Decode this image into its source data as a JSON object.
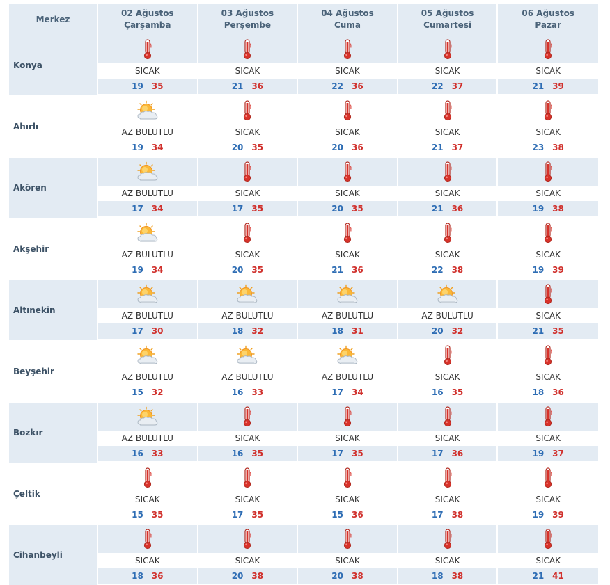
{
  "header": {
    "location_label": "Merkez",
    "days": [
      {
        "date": "02 Ağustos",
        "weekday": "Çarşamba"
      },
      {
        "date": "03 Ağustos",
        "weekday": "Perşembe"
      },
      {
        "date": "04 Ağustos",
        "weekday": "Cuma"
      },
      {
        "date": "05 Ağustos",
        "weekday": "Cumartesi"
      },
      {
        "date": "06 Ağustos",
        "weekday": "Pazar"
      }
    ]
  },
  "icons": {
    "hot": "thermometer-icon",
    "partly_cloudy": "partly-cloudy-icon"
  },
  "colors": {
    "min_temp": "#2e6db4",
    "max_temp": "#d0312d",
    "row_shade": "#e3ebf3"
  },
  "rows": [
    {
      "city": "Konya",
      "days": [
        {
          "icon": "hot",
          "condition": "SICAK",
          "min": "19",
          "max": "35"
        },
        {
          "icon": "hot",
          "condition": "SICAK",
          "min": "21",
          "max": "36"
        },
        {
          "icon": "hot",
          "condition": "SICAK",
          "min": "22",
          "max": "36"
        },
        {
          "icon": "hot",
          "condition": "SICAK",
          "min": "22",
          "max": "37"
        },
        {
          "icon": "hot",
          "condition": "SICAK",
          "min": "21",
          "max": "39"
        }
      ]
    },
    {
      "city": "Ahırlı",
      "days": [
        {
          "icon": "partly_cloudy",
          "condition": "AZ BULUTLU",
          "min": "19",
          "max": "34"
        },
        {
          "icon": "hot",
          "condition": "SICAK",
          "min": "20",
          "max": "35"
        },
        {
          "icon": "hot",
          "condition": "SICAK",
          "min": "20",
          "max": "36"
        },
        {
          "icon": "hot",
          "condition": "SICAK",
          "min": "21",
          "max": "37"
        },
        {
          "icon": "hot",
          "condition": "SICAK",
          "min": "23",
          "max": "38"
        }
      ]
    },
    {
      "city": "Akören",
      "days": [
        {
          "icon": "partly_cloudy",
          "condition": "AZ BULUTLU",
          "min": "17",
          "max": "34"
        },
        {
          "icon": "hot",
          "condition": "SICAK",
          "min": "17",
          "max": "35"
        },
        {
          "icon": "hot",
          "condition": "SICAK",
          "min": "20",
          "max": "35"
        },
        {
          "icon": "hot",
          "condition": "SICAK",
          "min": "21",
          "max": "36"
        },
        {
          "icon": "hot",
          "condition": "SICAK",
          "min": "19",
          "max": "38"
        }
      ]
    },
    {
      "city": "Akşehir",
      "days": [
        {
          "icon": "partly_cloudy",
          "condition": "AZ BULUTLU",
          "min": "19",
          "max": "34"
        },
        {
          "icon": "hot",
          "condition": "SICAK",
          "min": "20",
          "max": "35"
        },
        {
          "icon": "hot",
          "condition": "SICAK",
          "min": "21",
          "max": "36"
        },
        {
          "icon": "hot",
          "condition": "SICAK",
          "min": "22",
          "max": "38"
        },
        {
          "icon": "hot",
          "condition": "SICAK",
          "min": "19",
          "max": "39"
        }
      ]
    },
    {
      "city": "Altınekin",
      "days": [
        {
          "icon": "partly_cloudy",
          "condition": "AZ BULUTLU",
          "min": "17",
          "max": "30"
        },
        {
          "icon": "partly_cloudy",
          "condition": "AZ BULUTLU",
          "min": "18",
          "max": "32"
        },
        {
          "icon": "partly_cloudy",
          "condition": "AZ BULUTLU",
          "min": "18",
          "max": "31"
        },
        {
          "icon": "partly_cloudy",
          "condition": "AZ BULUTLU",
          "min": "20",
          "max": "32"
        },
        {
          "icon": "hot",
          "condition": "SICAK",
          "min": "21",
          "max": "35"
        }
      ]
    },
    {
      "city": "Beyşehir",
      "days": [
        {
          "icon": "partly_cloudy",
          "condition": "AZ BULUTLU",
          "min": "15",
          "max": "32"
        },
        {
          "icon": "partly_cloudy",
          "condition": "AZ BULUTLU",
          "min": "16",
          "max": "33"
        },
        {
          "icon": "partly_cloudy",
          "condition": "AZ BULUTLU",
          "min": "17",
          "max": "34"
        },
        {
          "icon": "hot",
          "condition": "SICAK",
          "min": "16",
          "max": "35"
        },
        {
          "icon": "hot",
          "condition": "SICAK",
          "min": "18",
          "max": "36"
        }
      ]
    },
    {
      "city": "Bozkır",
      "days": [
        {
          "icon": "partly_cloudy",
          "condition": "AZ BULUTLU",
          "min": "16",
          "max": "33"
        },
        {
          "icon": "hot",
          "condition": "SICAK",
          "min": "16",
          "max": "35"
        },
        {
          "icon": "hot",
          "condition": "SICAK",
          "min": "17",
          "max": "35"
        },
        {
          "icon": "hot",
          "condition": "SICAK",
          "min": "17",
          "max": "36"
        },
        {
          "icon": "hot",
          "condition": "SICAK",
          "min": "19",
          "max": "37"
        }
      ]
    },
    {
      "city": "Çeltik",
      "days": [
        {
          "icon": "hot",
          "condition": "SICAK",
          "min": "15",
          "max": "35"
        },
        {
          "icon": "hot",
          "condition": "SICAK",
          "min": "17",
          "max": "35"
        },
        {
          "icon": "hot",
          "condition": "SICAK",
          "min": "15",
          "max": "36"
        },
        {
          "icon": "hot",
          "condition": "SICAK",
          "min": "17",
          "max": "38"
        },
        {
          "icon": "hot",
          "condition": "SICAK",
          "min": "19",
          "max": "39"
        }
      ]
    },
    {
      "city": "Cihanbeyli",
      "days": [
        {
          "icon": "hot",
          "condition": "SICAK",
          "min": "18",
          "max": "36"
        },
        {
          "icon": "hot",
          "condition": "SICAK",
          "min": "20",
          "max": "38"
        },
        {
          "icon": "hot",
          "condition": "SICAK",
          "min": "20",
          "max": "38"
        },
        {
          "icon": "hot",
          "condition": "SICAK",
          "min": "18",
          "max": "38"
        },
        {
          "icon": "hot",
          "condition": "SICAK",
          "min": "21",
          "max": "41"
        }
      ]
    }
  ]
}
